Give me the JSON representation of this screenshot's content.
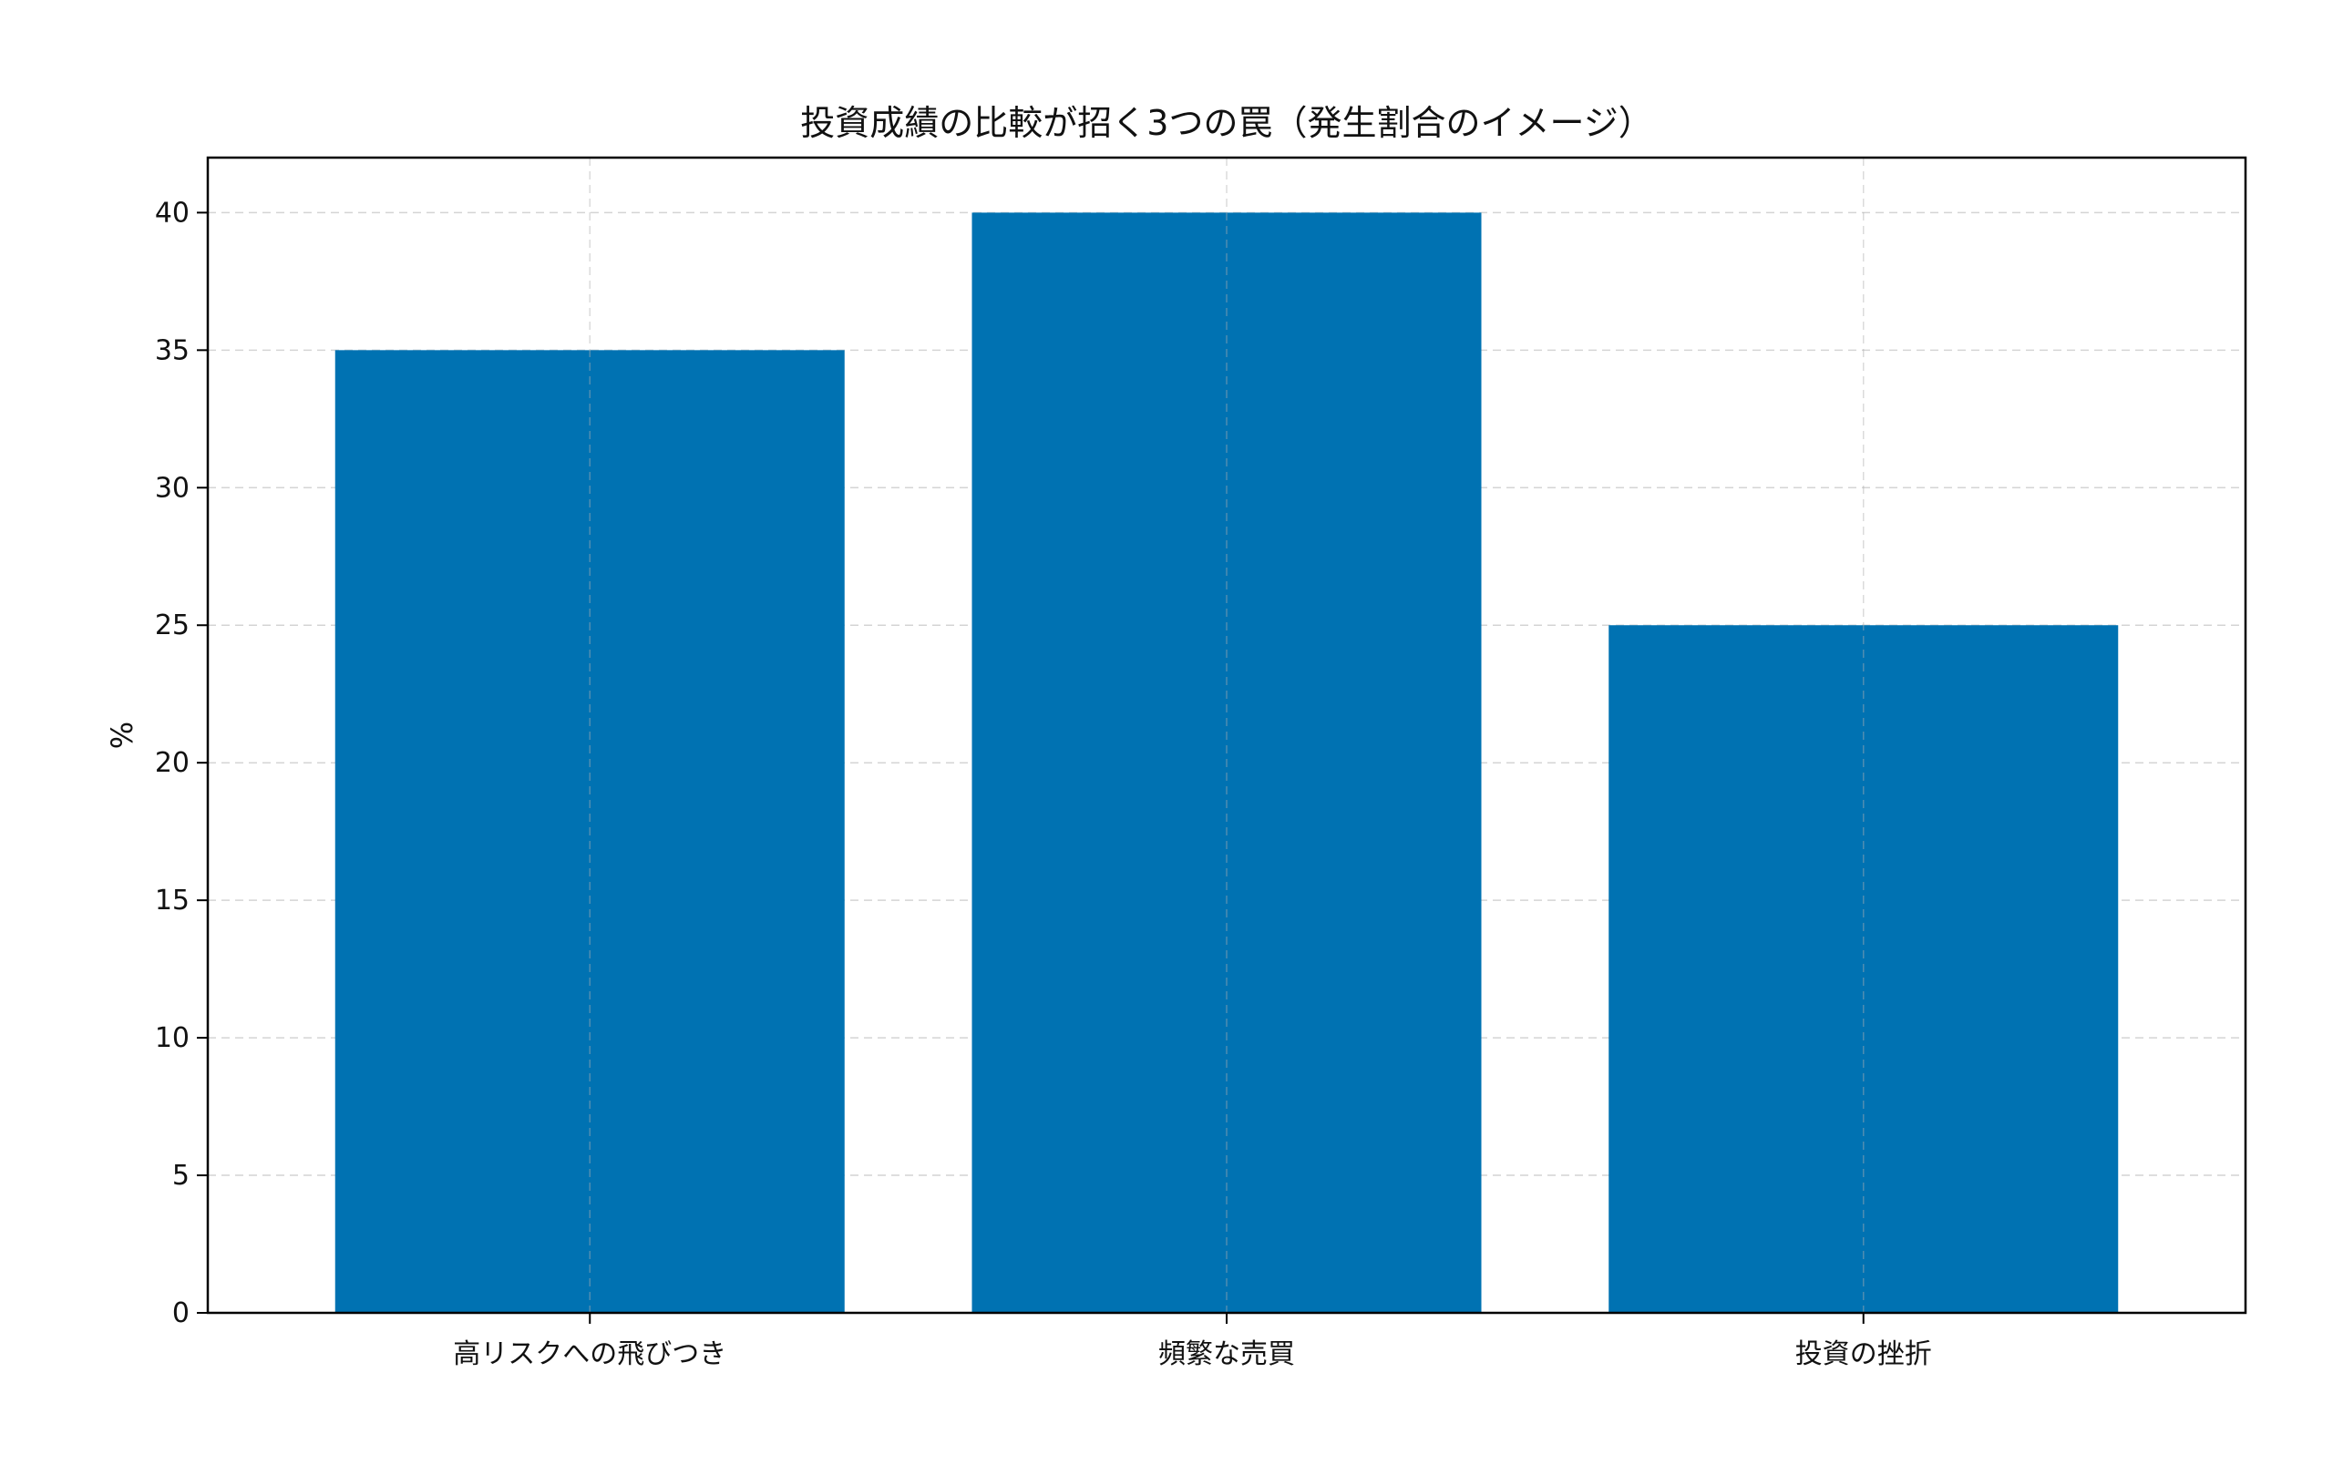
{
  "chart_data": {
    "type": "bar",
    "title": "投資成績の比較が招く3つの罠（発生割合のイメージ）",
    "xlabel": "",
    "ylabel": "%",
    "categories": [
      "高リスクへの飛びつき",
      "頻繁な売買",
      "投資の挫折"
    ],
    "values": [
      35,
      40,
      25
    ],
    "ylim": [
      0,
      42
    ],
    "yticks": [
      0,
      5,
      10,
      15,
      20,
      25,
      30,
      35,
      40
    ],
    "grid": true,
    "legend": "none",
    "bar_color": "#0072b2"
  }
}
